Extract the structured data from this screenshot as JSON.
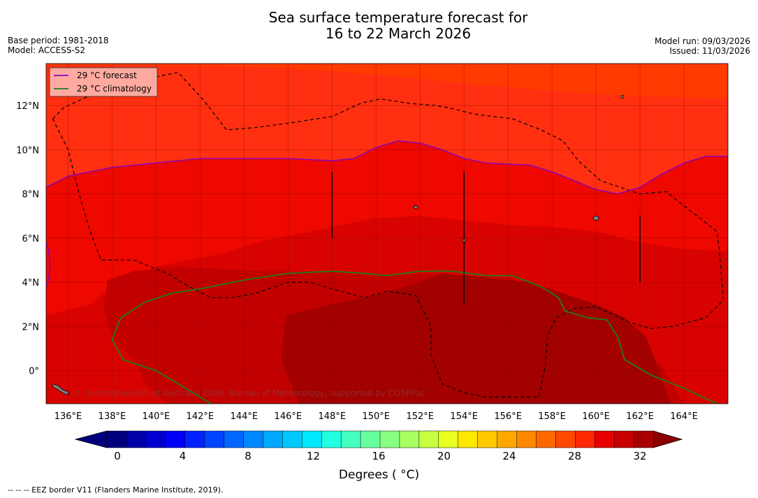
{
  "title": {
    "line1": "Sea surface temperature forecast for",
    "line2": "16 to 22 March 2026"
  },
  "meta": {
    "base_period": "Base period: 1981-2018",
    "model": "Model: ACCESS-S2",
    "model_run": "Model run: 09/03/2026",
    "issued": "Issued: 11/03/2026"
  },
  "map": {
    "lon_range": [
      135,
      166
    ],
    "lat_range": [
      -1.5,
      13.9
    ],
    "lon_ticks": [
      "136°E",
      "138°E",
      "140°E",
      "142°E",
      "144°E",
      "146°E",
      "148°E",
      "150°E",
      "152°E",
      "154°E",
      "156°E",
      "158°E",
      "160°E",
      "162°E",
      "164°E"
    ],
    "lon_tick_values": [
      136,
      138,
      140,
      142,
      144,
      146,
      148,
      150,
      152,
      154,
      156,
      158,
      160,
      162,
      164
    ],
    "lat_ticks": [
      "0°",
      "2°N",
      "4°N",
      "6°N",
      "8°N",
      "10°N",
      "12°N"
    ],
    "lat_tick_values": [
      0,
      2,
      4,
      6,
      8,
      10,
      12
    ],
    "copyright": "© Commonwealth of Australia 2026, Bureau of Meteorology, supported by COSPPac",
    "legend": [
      {
        "label": "29 °C  forecast",
        "color": "#8b00b8"
      },
      {
        "label": "29 °C  climatology",
        "color": "#1e7d1e"
      }
    ],
    "fill_colors": {
      "warm_28": "#ff2f10",
      "warm_29": "#ee0800",
      "warm_30": "#d80300",
      "warm_31": "#c20000",
      "warm_32": "#a30000",
      "cool_27": "#ff3a00"
    },
    "forecast_29_contour": [
      [
        135,
        8.3
      ],
      [
        136,
        8.8
      ],
      [
        138,
        9.2
      ],
      [
        140,
        9.4
      ],
      [
        142,
        9.6
      ],
      [
        144,
        9.6
      ],
      [
        146,
        9.6
      ],
      [
        148,
        9.5
      ],
      [
        149,
        9.6
      ],
      [
        150,
        10.1
      ],
      [
        151,
        10.4
      ],
      [
        152,
        10.3
      ],
      [
        153,
        10.0
      ],
      [
        154,
        9.6
      ],
      [
        155,
        9.4
      ],
      [
        157,
        9.3
      ],
      [
        158,
        9.0
      ],
      [
        159,
        8.6
      ],
      [
        160,
        8.2
      ],
      [
        161,
        8.0
      ],
      [
        162,
        8.3
      ],
      [
        163,
        8.9
      ],
      [
        164,
        9.4
      ],
      [
        165,
        9.7
      ],
      [
        166,
        9.7
      ]
    ],
    "climatology_29_contour": [
      [
        142.5,
        -1.5
      ],
      [
        141,
        -0.6
      ],
      [
        140,
        0
      ],
      [
        138.5,
        0.5
      ],
      [
        138,
        1.4
      ],
      [
        138.4,
        2.4
      ],
      [
        139.5,
        3.1
      ],
      [
        140.7,
        3.5
      ],
      [
        142,
        3.7
      ],
      [
        144,
        4.1
      ],
      [
        146,
        4.4
      ],
      [
        148,
        4.5
      ],
      [
        149.5,
        4.4
      ],
      [
        150.5,
        4.3
      ],
      [
        152,
        4.5
      ],
      [
        153.5,
        4.5
      ],
      [
        155,
        4.3
      ],
      [
        156.2,
        4.3
      ],
      [
        157.5,
        3.8
      ],
      [
        158.3,
        3.3
      ],
      [
        158.6,
        2.7
      ],
      [
        159.6,
        2.4
      ],
      [
        160.5,
        2.3
      ],
      [
        161,
        1.5
      ],
      [
        161.3,
        0.5
      ],
      [
        162.5,
        -0.2
      ],
      [
        164,
        -0.8
      ],
      [
        165.5,
        -1.5
      ]
    ],
    "eez_paths": [
      [
        [
          135.3,
          11.4
        ],
        [
          135.8,
          11.9
        ],
        [
          137.3,
          12.6
        ],
        [
          139,
          13.1
        ],
        [
          141,
          13.5
        ],
        [
          142.2,
          12.2
        ],
        [
          143.2,
          10.9
        ],
        [
          144.5,
          11.0
        ],
        [
          146,
          11.2
        ],
        [
          148,
          11.5
        ],
        [
          149.3,
          12.1
        ],
        [
          150.2,
          12.3
        ],
        [
          151.5,
          12.1
        ],
        [
          152.7,
          12.0
        ],
        [
          153.3,
          11.9
        ],
        [
          154.5,
          11.6
        ],
        [
          156.2,
          11.4
        ],
        [
          157.5,
          10.9
        ],
        [
          158.5,
          10.4
        ],
        [
          159.2,
          9.5
        ],
        [
          160.2,
          8.6
        ],
        [
          162,
          8.0
        ],
        [
          163.2,
          8.1
        ],
        [
          164.2,
          7.3
        ],
        [
          165.5,
          6.3
        ],
        [
          165.6,
          5.5
        ],
        [
          165.8,
          3.2
        ],
        [
          165,
          2.4
        ],
        [
          163.5,
          2.0
        ],
        [
          162.5,
          1.9
        ],
        [
          161.5,
          2.2
        ],
        [
          160,
          2.9
        ],
        [
          159,
          2.8
        ],
        [
          158.2,
          2.4
        ],
        [
          157.8,
          1.6
        ],
        [
          157.7,
          0.2
        ],
        [
          157.4,
          -1.2
        ],
        [
          155,
          -1.2
        ],
        [
          154,
          -1.0
        ],
        [
          153,
          -0.6
        ],
        [
          152.5,
          0.7
        ],
        [
          152.5,
          2.0
        ],
        [
          151.8,
          3.4
        ],
        [
          150.5,
          3.6
        ],
        [
          149.5,
          3.3
        ],
        [
          148,
          3.7
        ],
        [
          147,
          4.0
        ],
        [
          146,
          4.0
        ],
        [
          144.5,
          3.5
        ],
        [
          143.5,
          3.3
        ],
        [
          142.5,
          3.3
        ],
        [
          141.5,
          3.8
        ],
        [
          140.5,
          4.4
        ],
        [
          139,
          5.0
        ],
        [
          137.5,
          5.0
        ],
        [
          137,
          6.3
        ],
        [
          136.5,
          8.0
        ],
        [
          136,
          10.0
        ],
        [
          135.3,
          11.4
        ]
      ]
    ],
    "verticals": [
      [
        148,
        6.0,
        9.0
      ],
      [
        154,
        3.0,
        9.0
      ],
      [
        162,
        4.0,
        7.0
      ]
    ]
  },
  "colorbar": {
    "tick_labels": [
      "0",
      "4",
      "8",
      "12",
      "16",
      "20",
      "24",
      "28",
      "32"
    ],
    "tick_values": [
      0,
      4,
      8,
      12,
      16,
      20,
      24,
      28,
      32
    ],
    "colors": [
      "#00007f",
      "#0000a8",
      "#0000d0",
      "#0000f8",
      "#0022ff",
      "#0044ff",
      "#0066ff",
      "#0088ff",
      "#00a8ff",
      "#00c8ff",
      "#00e8ff",
      "#22ffe0",
      "#44ffc0",
      "#66ffa0",
      "#88ff80",
      "#a8ff60",
      "#c8ff40",
      "#e8ff20",
      "#ffe800",
      "#ffc800",
      "#ffa800",
      "#ff8800",
      "#ff6800",
      "#ff4800",
      "#ff2800",
      "#e80000",
      "#c80000",
      "#a80000"
    ],
    "under_color": "#00007f",
    "over_color": "#8b0000",
    "label": "Degrees ( °C)"
  },
  "footnote": "--  --  -- EEZ border V11 (Flanders Marine Institute, 2019)."
}
